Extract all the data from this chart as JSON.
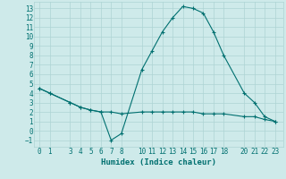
{
  "upper_x": [
    0,
    1,
    3,
    4,
    5,
    6,
    7,
    8,
    10,
    11,
    12,
    13,
    14,
    15,
    16,
    17,
    18,
    20,
    21,
    22,
    23
  ],
  "upper_y": [
    4.5,
    4.0,
    3.0,
    2.5,
    2.2,
    2.0,
    -1.0,
    -0.3,
    6.5,
    8.5,
    10.5,
    12.0,
    13.2,
    13.0,
    12.5,
    10.5,
    8.0,
    4.0,
    3.0,
    1.5,
    1.0
  ],
  "lower_x": [
    0,
    1,
    3,
    4,
    5,
    6,
    7,
    8,
    10,
    11,
    12,
    13,
    14,
    15,
    16,
    17,
    18,
    20,
    21,
    22,
    23
  ],
  "lower_y": [
    4.5,
    4.0,
    3.0,
    2.5,
    2.2,
    2.0,
    2.0,
    1.8,
    2.0,
    2.0,
    2.0,
    2.0,
    2.0,
    2.0,
    1.8,
    1.8,
    1.8,
    1.5,
    1.5,
    1.2,
    1.0
  ],
  "line_color": "#007070",
  "bg_color": "#ceeaea",
  "grid_color": "#add4d4",
  "xlabel": "Humidex (Indice chaleur)",
  "xticks": [
    0,
    1,
    3,
    4,
    5,
    6,
    7,
    8,
    10,
    11,
    12,
    13,
    14,
    15,
    16,
    17,
    18,
    20,
    21,
    22,
    23
  ],
  "yticks": [
    -1,
    0,
    1,
    2,
    3,
    4,
    5,
    6,
    7,
    8,
    9,
    10,
    11,
    12,
    13
  ],
  "xlim": [
    -0.5,
    23.8
  ],
  "ylim": [
    -1.7,
    13.7
  ]
}
